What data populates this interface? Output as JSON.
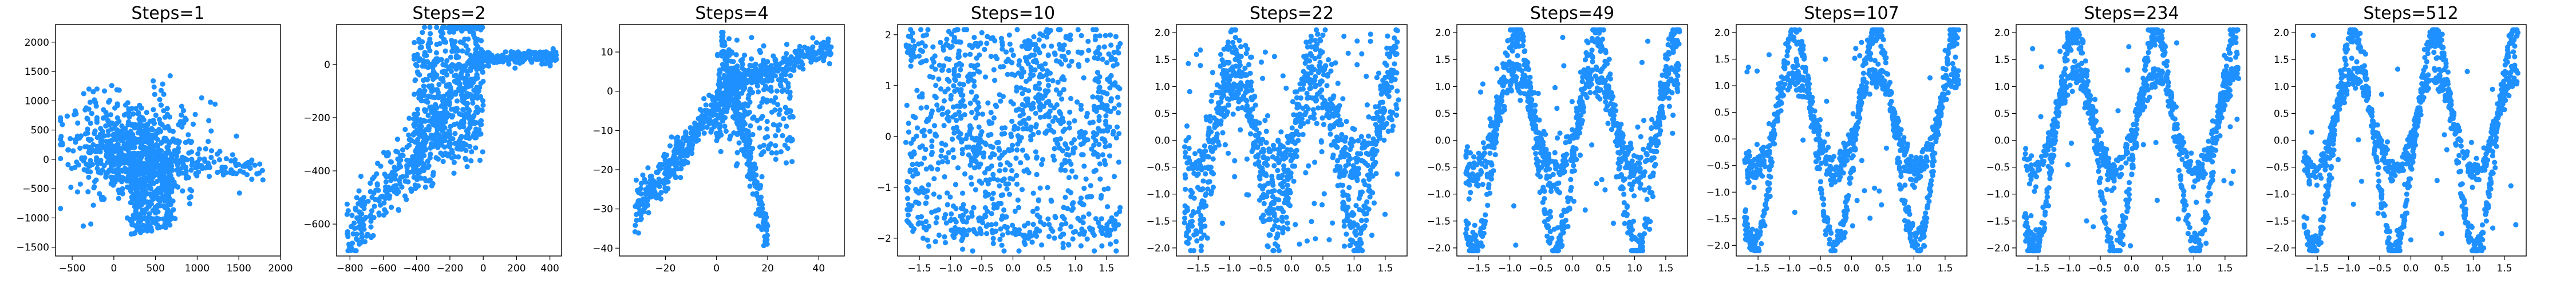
{
  "figure": {
    "point_color": "#1e90ff"
  },
  "chart_data": [
    {
      "type": "scatter",
      "title": "Steps=1",
      "kind": "blob",
      "xlim": [
        -700,
        2000
      ],
      "ylim": [
        -1650,
        2300
      ],
      "xticks": [
        -500,
        0,
        500,
        1000,
        1500,
        2000
      ],
      "yticks": [
        -1500,
        -1000,
        -500,
        0,
        500,
        1000,
        1500,
        2000
      ]
    },
    {
      "type": "scatter",
      "title": "Steps=2",
      "kind": "wedge",
      "xlim": [
        -880,
        470
      ],
      "ylim": [
        -720,
        150
      ],
      "xticks": [
        -800,
        -600,
        -400,
        -200,
        0,
        200,
        400
      ],
      "yticks": [
        -600,
        -400,
        -200,
        0
      ]
    },
    {
      "type": "scatter",
      "title": "Steps=4",
      "kind": "cross",
      "xlim": [
        -38,
        50
      ],
      "ylim": [
        -42,
        17
      ],
      "xticks": [
        -20,
        0,
        20,
        40
      ],
      "yticks": [
        -40,
        -30,
        -20,
        -10,
        0,
        10
      ]
    },
    {
      "type": "scatter",
      "title": "Steps=10",
      "kind": "sine",
      "noise": 0.55,
      "wave": 0.45,
      "scatter_frac": 0.45,
      "xlim": [
        -1.85,
        1.85
      ],
      "ylim": [
        -2.35,
        2.2
      ],
      "xticks": [
        -1.5,
        -1.0,
        -0.5,
        0.0,
        0.5,
        1.0,
        1.5
      ],
      "yticks": [
        -2,
        -1,
        0,
        1,
        2
      ]
    },
    {
      "type": "scatter",
      "title": "Steps=22",
      "kind": "sine",
      "noise": 0.32,
      "wave": 0.85,
      "scatter_frac": 0.12,
      "xlim": [
        -1.85,
        1.85
      ],
      "ylim": [
        -2.15,
        2.15
      ],
      "xticks": [
        -1.5,
        -1.0,
        -0.5,
        0.0,
        0.5,
        1.0,
        1.5
      ],
      "yticks": [
        -2.0,
        -1.5,
        -1.0,
        -0.5,
        0.0,
        0.5,
        1.0,
        1.5,
        2.0
      ]
    },
    {
      "type": "scatter",
      "title": "Steps=49",
      "kind": "sine",
      "noise": 0.2,
      "wave": 1.0,
      "scatter_frac": 0.05,
      "xlim": [
        -1.85,
        1.85
      ],
      "ylim": [
        -2.15,
        2.15
      ],
      "xticks": [
        -1.5,
        -1.0,
        -0.5,
        0.0,
        0.5,
        1.0,
        1.5
      ],
      "yticks": [
        -2.0,
        -1.5,
        -1.0,
        -0.5,
        0.0,
        0.5,
        1.0,
        1.5,
        2.0
      ]
    },
    {
      "type": "scatter",
      "title": "Steps=107",
      "kind": "sine",
      "noise": 0.15,
      "wave": 1.0,
      "scatter_frac": 0.03,
      "xlim": [
        -1.85,
        1.85
      ],
      "ylim": [
        -2.2,
        2.15
      ],
      "xticks": [
        -1.5,
        -1.0,
        -0.5,
        0.0,
        0.5,
        1.0,
        1.5
      ],
      "yticks": [
        -2.0,
        -1.5,
        -1.0,
        -0.5,
        0.0,
        0.5,
        1.0,
        1.5,
        2.0
      ]
    },
    {
      "type": "scatter",
      "title": "Steps=234",
      "kind": "sine",
      "noise": 0.14,
      "wave": 1.0,
      "scatter_frac": 0.03,
      "xlim": [
        -1.85,
        1.85
      ],
      "ylim": [
        -2.15,
        2.15
      ],
      "xticks": [
        -1.5,
        -1.0,
        -0.5,
        0.0,
        0.5,
        1.0,
        1.5
      ],
      "yticks": [
        -2.0,
        -1.5,
        -1.0,
        -0.5,
        0.0,
        0.5,
        1.0,
        1.5,
        2.0
      ]
    },
    {
      "type": "scatter",
      "title": "Steps=512",
      "kind": "sine",
      "noise": 0.13,
      "wave": 1.0,
      "scatter_frac": 0.03,
      "xlim": [
        -1.85,
        1.85
      ],
      "ylim": [
        -2.15,
        2.15
      ],
      "xticks": [
        -1.5,
        -1.0,
        -0.5,
        0.0,
        0.5,
        1.0,
        1.5
      ],
      "yticks": [
        -2.0,
        -1.5,
        -1.0,
        -0.5,
        0.0,
        0.5,
        1.0,
        1.5,
        2.0
      ]
    }
  ]
}
